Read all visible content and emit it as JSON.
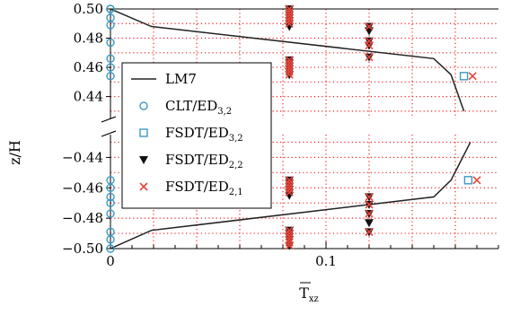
{
  "chart_data": {
    "type": "line",
    "xlabel_base": "T",
    "xlabel_sub": "xz",
    "ylabel": "z/H",
    "x_ticks": [
      {
        "value": 0,
        "label": "0"
      },
      {
        "value": 0.1,
        "label": "0.1"
      }
    ],
    "y_ticks_upper": [
      {
        "value": 0.5,
        "label": "0.50"
      },
      {
        "value": 0.48,
        "label": "0.48"
      },
      {
        "value": 0.46,
        "label": "0.46"
      },
      {
        "value": 0.44,
        "label": "0.44"
      }
    ],
    "y_ticks_lower": [
      {
        "value": -0.44,
        "label": "−0.44"
      },
      {
        "value": -0.46,
        "label": "−0.46"
      },
      {
        "value": -0.48,
        "label": "−0.48"
      },
      {
        "value": -0.5,
        "label": "−0.50"
      }
    ],
    "xlim": [
      0,
      0.18
    ],
    "ylim_upper": [
      0.425,
      0.5
    ],
    "ylim_lower": [
      -0.5,
      -0.425
    ],
    "broken_y_axis": true,
    "grid": "dotted",
    "legend_position": "center-left",
    "legend": [
      {
        "base": "LM7",
        "sub": "",
        "marker": "line"
      },
      {
        "base": "CLT/ED",
        "sub": "3,2",
        "marker": "circle"
      },
      {
        "base": "FSDT/ED",
        "sub": "3,2",
        "marker": "square"
      },
      {
        "base": "FSDT/ED",
        "sub": "2,2",
        "marker": "triangle-down"
      },
      {
        "base": "FSDT/ED",
        "sub": "2,1",
        "marker": "x"
      }
    ],
    "colors": {
      "line": "#222222",
      "circle": "#3a9ac3",
      "square": "#3a9ac3",
      "triangle": "#111111",
      "x": "#e8453c",
      "grid": "#ee2222"
    },
    "series": [
      {
        "name": "LM7",
        "upper": {
          "x": [
            0,
            0.019,
            0.15,
            0.158,
            0.164
          ],
          "y": [
            0.5,
            0.488,
            0.466,
            0.455,
            0.43
          ]
        },
        "lower": {
          "x": [
            0,
            0.019,
            0.15,
            0.158,
            0.167
          ],
          "y": [
            -0.5,
            -0.488,
            -0.466,
            -0.455,
            -0.43
          ]
        }
      },
      {
        "name": "CLT/ED_3,2",
        "x": [
          0,
          0,
          0,
          0,
          0,
          0,
          0,
          0,
          0,
          0,
          0,
          0,
          0,
          0,
          0,
          0
        ],
        "y": [
          0.5,
          0.494,
          0.489,
          0.477,
          0.466,
          0.46,
          0.454,
          0.5,
          -0.455,
          -0.46,
          -0.466,
          -0.477,
          -0.489,
          -0.494,
          -0.5,
          -0.47
        ]
      },
      {
        "name": "FSDT/ED_3,2",
        "x": [
          0.164,
          0.166
        ],
        "y": [
          0.454,
          -0.455
        ]
      },
      {
        "name": "FSDT/ED_2,2",
        "x": [
          0.083,
          0.083,
          0.083,
          0.083,
          0.083,
          0.083,
          0.083,
          0.083,
          0.083,
          0.083,
          0.083,
          0.083,
          0.083,
          0.083,
          0.083,
          0.083,
          0.083,
          0.083,
          0.083,
          0.083,
          0.083,
          0.083,
          0.083,
          0.083,
          0.12,
          0.12,
          0.12,
          0.12,
          0.12,
          0.12,
          0.12,
          0.12,
          0.12,
          0.12
        ],
        "y": [
          0.5,
          0.498,
          0.496,
          0.494,
          0.492,
          0.49,
          0.488,
          0.465,
          0.463,
          0.461,
          0.459,
          0.457,
          0.455,
          -0.455,
          -0.457,
          -0.459,
          -0.461,
          -0.463,
          -0.465,
          -0.488,
          -0.49,
          -0.492,
          -0.494,
          -0.498,
          0.488,
          0.485,
          0.478,
          0.475,
          0.467,
          -0.466,
          -0.471,
          -0.477,
          -0.483,
          -0.489
        ]
      },
      {
        "name": "FSDT/ED_2,1",
        "x": [
          0.083,
          0.083,
          0.083,
          0.083,
          0.083,
          0.083,
          0.083,
          0.083,
          0.083,
          0.083,
          0.083,
          0.083,
          0.083,
          0.083,
          0.083,
          0.083,
          0.083,
          0.083,
          0.083,
          0.083,
          0.083,
          0.083,
          0.083,
          0.12,
          0.12,
          0.12,
          0.12,
          0.12,
          0.12,
          0.12,
          0.12,
          0.168,
          0.17
        ],
        "y": [
          0.5,
          0.498,
          0.496,
          0.494,
          0.492,
          0.49,
          0.465,
          0.463,
          0.461,
          0.459,
          0.457,
          0.455,
          -0.455,
          -0.457,
          -0.459,
          -0.461,
          -0.463,
          -0.488,
          -0.49,
          -0.492,
          -0.494,
          -0.496,
          -0.498,
          0.488,
          0.478,
          0.475,
          0.467,
          -0.466,
          -0.471,
          -0.477,
          -0.489,
          0.454,
          -0.455
        ]
      }
    ]
  }
}
